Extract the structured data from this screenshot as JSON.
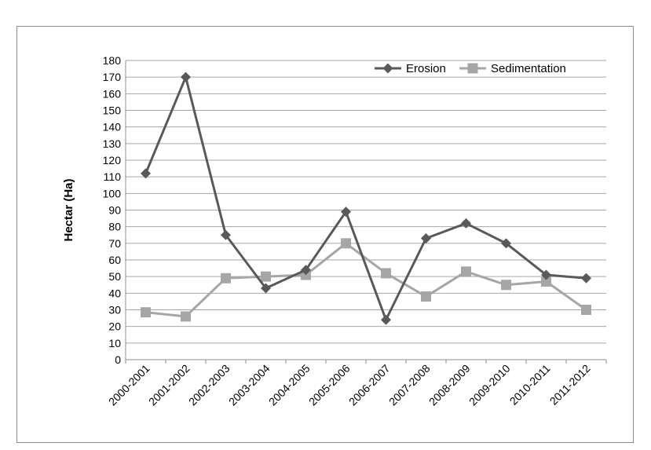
{
  "chart_data": {
    "type": "line",
    "title": "",
    "xlabel": "",
    "ylabel": "Hectar (Ha)",
    "ylim": [
      0,
      180
    ],
    "ytick_step": 10,
    "grid": "horizontal",
    "legend_position": "top-right",
    "categories": [
      "2000-2001",
      "2001-2002",
      "2002-2003",
      "2003-2004",
      "2004-2005",
      "2005-2006",
      "2006-2007",
      "2007-2008",
      "2008-2009",
      "2009-2010",
      "2010-2011",
      "2011-2012"
    ],
    "series": [
      {
        "name": "Erosion",
        "color": "#595959",
        "marker": "diamond",
        "values": [
          112,
          170,
          75,
          43,
          54,
          89,
          24,
          73,
          82,
          70,
          51,
          49
        ]
      },
      {
        "name": "Sedimentation",
        "color": "#a6a6a6",
        "marker": "square",
        "values": [
          28.5,
          26,
          49,
          50,
          51,
          70,
          52,
          38,
          53,
          45,
          47,
          30
        ]
      }
    ]
  }
}
